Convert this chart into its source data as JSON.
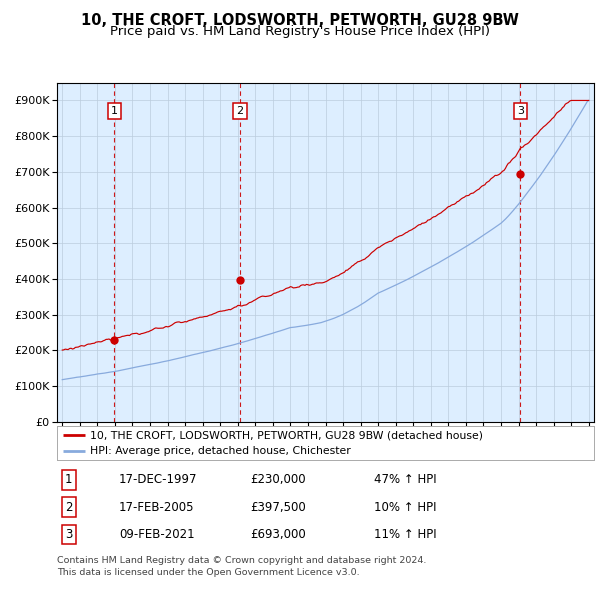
{
  "title": "10, THE CROFT, LODSWORTH, PETWORTH, GU28 9BW",
  "subtitle": "Price paid vs. HM Land Registry's House Price Index (HPI)",
  "ylim": [
    0,
    950000
  ],
  "yticks": [
    0,
    100000,
    200000,
    300000,
    400000,
    500000,
    600000,
    700000,
    800000,
    900000
  ],
  "ytick_labels": [
    "£0",
    "£100K",
    "£200K",
    "£300K",
    "£400K",
    "£500K",
    "£600K",
    "£700K",
    "£800K",
    "£900K"
  ],
  "xlim_start": 1994.7,
  "xlim_end": 2025.3,
  "line_color_property": "#cc0000",
  "line_color_hpi": "#88aadd",
  "purchase_dates": [
    1997.96,
    2005.12,
    2021.1
  ],
  "purchase_prices": [
    230000,
    397500,
    693000
  ],
  "purchase_labels": [
    "1",
    "2",
    "3"
  ],
  "legend_property": "10, THE CROFT, LODSWORTH, PETWORTH, GU28 9BW (detached house)",
  "legend_hpi": "HPI: Average price, detached house, Chichester",
  "table_data": [
    [
      "1",
      "17-DEC-1997",
      "£230,000",
      "47% ↑ HPI"
    ],
    [
      "2",
      "17-FEB-2005",
      "£397,500",
      "10% ↑ HPI"
    ],
    [
      "3",
      "09-FEB-2021",
      "£693,000",
      "11% ↑ HPI"
    ]
  ],
  "footnote": "Contains HM Land Registry data © Crown copyright and database right 2024.\nThis data is licensed under the Open Government Licence v3.0.",
  "background_color": "#ddeeff",
  "plot_bg_color": "#ffffff",
  "vline_color": "#cc0000",
  "grid_color": "#bbccdd",
  "title_fontsize": 10.5,
  "subtitle_fontsize": 9.5,
  "tick_fontsize": 8
}
